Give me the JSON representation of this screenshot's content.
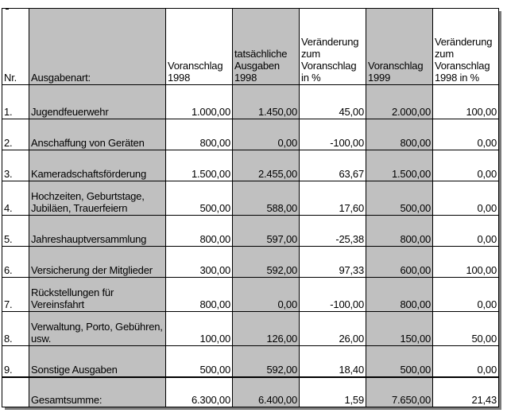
{
  "headers": {
    "nr": "Nr.",
    "art": "Ausgabenart:",
    "vor1998": "Voranschlag 1998",
    "ist1998": "tatsächliche Ausgaben 1998",
    "ver1998": "Veränderung zum Voranschlag in %",
    "vor1999": "Voranschlag 1999",
    "ver1999": "Veränderung zum Voranschlag 1998 in %"
  },
  "rows": [
    {
      "nr": "1.",
      "art": "Jugendfeuerwehr",
      "vor1998": "1.000,00",
      "ist1998": "1.450,00",
      "ver1998": "45,00",
      "vor1999": "2.000,00",
      "ver1999": "100,00"
    },
    {
      "nr": "2.",
      "art": "Anschaffung von Geräten",
      "vor1998": "800,00",
      "ist1998": "0,00",
      "ver1998": "-100,00",
      "vor1999": "800,00",
      "ver1999": "0,00"
    },
    {
      "nr": "3.",
      "art": "Kameradschaftsförderung",
      "vor1998": "1.500,00",
      "ist1998": "2.455,00",
      "ver1998": "63,67",
      "vor1999": "1.500,00",
      "ver1999": "0,00"
    },
    {
      "nr": "4.",
      "art": "Hochzeiten, Geburtstage, Jubiläen, Trauerfeiern",
      "vor1998": "500,00",
      "ist1998": "588,00",
      "ver1998": "17,60",
      "vor1999": "500,00",
      "ver1999": "0,00"
    },
    {
      "nr": "5.",
      "art": "Jahreshauptversammlung",
      "vor1998": "800,00",
      "ist1998": "597,00",
      "ver1998": "-25,38",
      "vor1999": "800,00",
      "ver1999": "0,00"
    },
    {
      "nr": "6.",
      "art": "Versicherung der Mitglieder",
      "vor1998": "300,00",
      "ist1998": "592,00",
      "ver1998": "97,33",
      "vor1999": "600,00",
      "ver1999": "100,00"
    },
    {
      "nr": "7.",
      "art": "Rückstellungen für Vereinsfahrt",
      "vor1998": "800,00",
      "ist1998": "0,00",
      "ver1998": "-100,00",
      "vor1999": "800,00",
      "ver1999": "0,00"
    },
    {
      "nr": "8.",
      "art": "Verwaltung, Porto, Gebühren, usw.",
      "vor1998": "100,00",
      "ist1998": "126,00",
      "ver1998": "26,00",
      "vor1999": "150,00",
      "ver1999": "50,00"
    },
    {
      "nr": "9.",
      "art": "Sonstige Ausgaben",
      "vor1998": "500,00",
      "ist1998": "592,00",
      "ver1998": "18,40",
      "vor1999": "500,00",
      "ver1999": "0,00"
    }
  ],
  "total": {
    "art": "Gesamtsumme:",
    "vor1998": "6.300,00",
    "ist1998": "6.400,00",
    "ver1998": "1,59",
    "vor1999": "7.650,00",
    "ver1999": "21,43"
  }
}
